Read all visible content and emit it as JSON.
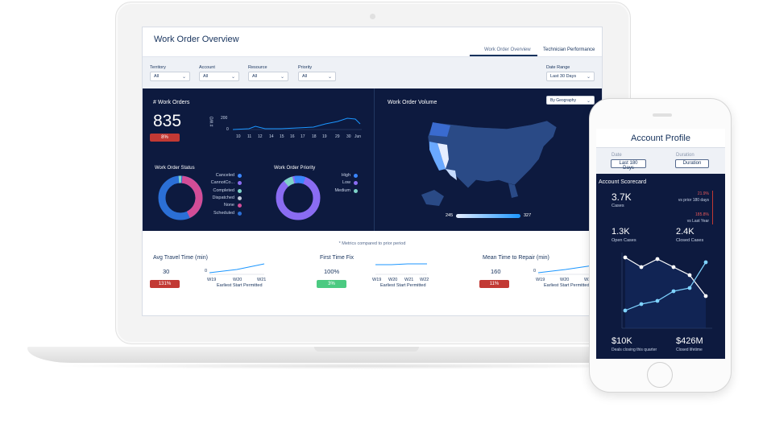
{
  "dashboard": {
    "title": "Work Order Overview",
    "tabs": [
      {
        "label": "Work Order Overview"
      },
      {
        "label": "Technician Performance"
      }
    ],
    "filters": [
      {
        "label": "Territory",
        "value": "All"
      },
      {
        "label": "Account",
        "value": "All"
      },
      {
        "label": "Resource",
        "value": "All"
      },
      {
        "label": "Priority",
        "value": "All"
      },
      {
        "label": "Date Range",
        "value": "Last 30 Days"
      }
    ],
    "work_orders": {
      "title": "# Work Orders",
      "value": "835",
      "badge": "8%",
      "axis_label": "# WO",
      "y_ticks": [
        "200",
        "0"
      ],
      "x_ticks": [
        "10",
        "11",
        "12",
        "14",
        "15",
        "16",
        "17",
        "18",
        "19",
        "29",
        "30",
        "Jun"
      ]
    },
    "status": {
      "title": "Work Order Status",
      "legend": [
        "Canceled",
        "CannotCo...",
        "Completed",
        "Dispatched",
        "None",
        "Scheduled"
      ]
    },
    "priority": {
      "title": "Work Order Priority",
      "legend": [
        "High",
        "Low",
        "Medium"
      ]
    },
    "volume": {
      "title": "Work Order Volume",
      "selector": "By Geography",
      "range_min": "245",
      "range_max": "327"
    },
    "note": "* Metrics compared to prior period",
    "metrics": [
      {
        "title": "Avg Travel Time (min)",
        "value": "30",
        "badge": "131%",
        "zero": "0",
        "x_ticks": [
          "W19",
          "W20",
          "W21"
        ],
        "caption": "Earliest Start Permitted"
      },
      {
        "title": "First Time Fix",
        "value": "100%",
        "badge": "3%",
        "x_ticks": [
          "W19",
          "W20",
          "W21",
          "W22"
        ],
        "caption": "Earliest Start Permitted"
      },
      {
        "title": "Mean Time to Repair (min)",
        "value": "160",
        "badge": "11%",
        "zero": "0",
        "x_ticks": [
          "W19",
          "W20",
          "W21"
        ],
        "caption": "Earliest Start Permitted"
      }
    ]
  },
  "mobile": {
    "title": "Account Profile",
    "filters": [
      {
        "label": "Date",
        "value": "Last 180 Days"
      },
      {
        "label": "Duration",
        "value": "Duration"
      }
    ],
    "scorecard_title": "Account Scorecard",
    "cases_value": "3.7K",
    "cases_label": "Cases",
    "prior_pct": "21.9%",
    "prior_label": "vs prior 180 days",
    "last_year_pct": "185.8%",
    "last_year_label": "vs Last Year",
    "open_cases_value": "1.3K",
    "open_cases_label": "Open Cases",
    "closed_cases_value": "2.4K",
    "closed_cases_label": "Closed Cases",
    "deals_value": "$10K",
    "deals_label": "Deals closing this quarter",
    "lifetime_value": "$426M",
    "lifetime_label": "Closed lifetime"
  },
  "colors": {
    "navy": "#0d1a3f",
    "text": "#16325c",
    "red_badge": "#c23934",
    "green_badge": "#4bca81",
    "line_blue": "#1b96ff"
  },
  "icons": [
    "chevron-down-icon"
  ]
}
